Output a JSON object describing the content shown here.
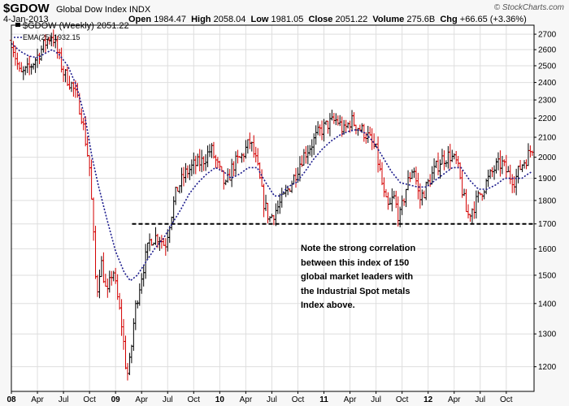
{
  "header": {
    "symbol": "$GDOW",
    "name": "Global Dow Index",
    "exchange": "INDX",
    "date": "4-Jan-2013",
    "open_label": "Open",
    "open": "1984.47",
    "high_label": "High",
    "high": "2058.04",
    "low_label": "Low",
    "low": "1981.05",
    "close_label": "Close",
    "close": "2051.22",
    "volume_label": "Volume",
    "volume": "275.6B",
    "chg_label": "Chg",
    "chg": "+66.65 (+3.36%)",
    "brand": "© StockCharts.com"
  },
  "legend": {
    "price": "$GDOW (Weekly) 2051.22",
    "ema": "EMA(25) 1932.15"
  },
  "annotation": {
    "lines": [
      "Note the strong correlation",
      "between this index of 150",
      "global market leaders with",
      "the Industrial Spot metals",
      "Index above."
    ]
  },
  "chart_data": {
    "type": "ohlc",
    "title": "$GDOW (Weekly)",
    "x_tick_labels": [
      "08",
      "Apr",
      "Jul",
      "Oct",
      "09",
      "Apr",
      "Jul",
      "Oct",
      "10",
      "Apr",
      "Jul",
      "Oct",
      "11",
      "Apr",
      "Jul",
      "Oct",
      "12",
      "Apr",
      "Jul",
      "Oct"
    ],
    "x_tick_months": [
      0,
      3,
      6,
      9,
      12,
      15,
      18,
      21,
      24,
      27,
      30,
      33,
      36,
      39,
      42,
      45,
      48,
      51,
      54,
      57
    ],
    "y_tick_labels": [
      "1200",
      "1300",
      "1400",
      "1500",
      "1600",
      "1700",
      "1800",
      "1900",
      "2000",
      "2100",
      "2200",
      "2300",
      "2400",
      "2500",
      "2600",
      "2700"
    ],
    "y_scale": "log",
    "ylim": [
      1130,
      2760
    ],
    "xlim_months": [
      0,
      60.2
    ],
    "grid": true,
    "horizontal_line": 1700,
    "price_monthly_path": [
      [
        0,
        2660
      ],
      [
        1,
        2440
      ],
      [
        2,
        2480
      ],
      [
        3,
        2560
      ],
      [
        4,
        2650
      ],
      [
        4.7,
        2700
      ],
      [
        5.2,
        2600
      ],
      [
        6,
        2460
      ],
      [
        7,
        2380
      ],
      [
        8,
        2240
      ],
      [
        9,
        1950
      ],
      [
        9.8,
        1420
      ],
      [
        10.3,
        1560
      ],
      [
        11,
        1420
      ],
      [
        11.7,
        1530
      ],
      [
        12,
        1460
      ],
      [
        12.7,
        1330
      ],
      [
        13.3,
        1170
      ],
      [
        13.7,
        1220
      ],
      [
        14.2,
        1370
      ],
      [
        15,
        1500
      ],
      [
        16,
        1640
      ],
      [
        17,
        1650
      ],
      [
        17.7,
        1610
      ],
      [
        18.3,
        1720
      ],
      [
        19,
        1840
      ],
      [
        20,
        1920
      ],
      [
        21,
        1960
      ],
      [
        22,
        1980
      ],
      [
        23,
        2040
      ],
      [
        24,
        1930
      ],
      [
        24.7,
        1860
      ],
      [
        25.5,
        1960
      ],
      [
        26.5,
        2000
      ],
      [
        27.5,
        2080
      ],
      [
        28.3,
        1960
      ],
      [
        29,
        1800
      ],
      [
        29.7,
        1720
      ],
      [
        30.5,
        1760
      ],
      [
        31.5,
        1820
      ],
      [
        32.5,
        1900
      ],
      [
        33.5,
        2000
      ],
      [
        34.5,
        2060
      ],
      [
        35.5,
        2130
      ],
      [
        36.5,
        2170
      ],
      [
        37.5,
        2190
      ],
      [
        38.3,
        2130
      ],
      [
        39.1,
        2190
      ],
      [
        40,
        2150
      ],
      [
        41,
        2110
      ],
      [
        42,
        2030
      ],
      [
        42.5,
        1920
      ],
      [
        43,
        1800
      ],
      [
        43.5,
        1760
      ],
      [
        44,
        1820
      ],
      [
        44.7,
        1720
      ],
      [
        45.5,
        1860
      ],
      [
        46.3,
        1960
      ],
      [
        47,
        1800
      ],
      [
        47.8,
        1860
      ],
      [
        48.5,
        1920
      ],
      [
        49.5,
        1990
      ],
      [
        50.5,
        2010
      ],
      [
        51.3,
        1970
      ],
      [
        52,
        1830
      ],
      [
        52.5,
        1730
      ],
      [
        53,
        1760
      ],
      [
        53.5,
        1790
      ],
      [
        54,
        1830
      ],
      [
        55,
        1900
      ],
      [
        55.7,
        1950
      ],
      [
        56.5,
        1970
      ],
      [
        57.2,
        1920
      ],
      [
        58,
        1890
      ],
      [
        58.7,
        1960
      ],
      [
        59.4,
        2000
      ],
      [
        60,
        2051
      ]
    ],
    "ema_monthly_path": [
      [
        0,
        2640
      ],
      [
        1,
        2590
      ],
      [
        2,
        2560
      ],
      [
        3,
        2550
      ],
      [
        4,
        2580
      ],
      [
        4.7,
        2600
      ],
      [
        5.5,
        2570
      ],
      [
        6.5,
        2500
      ],
      [
        7.5,
        2380
      ],
      [
        8.5,
        2200
      ],
      [
        9.3,
        2000
      ],
      [
        10,
        1870
      ],
      [
        11,
        1720
      ],
      [
        12,
        1590
      ],
      [
        13,
        1510
      ],
      [
        13.7,
        1480
      ],
      [
        14.5,
        1500
      ],
      [
        15.5,
        1550
      ],
      [
        16.5,
        1600
      ],
      [
        17.5,
        1640
      ],
      [
        18.5,
        1700
      ],
      [
        19.5,
        1760
      ],
      [
        20.5,
        1830
      ],
      [
        21.5,
        1880
      ],
      [
        22.5,
        1920
      ],
      [
        23.5,
        1950
      ],
      [
        24.5,
        1930
      ],
      [
        25.3,
        1900
      ],
      [
        26.3,
        1920
      ],
      [
        27.3,
        1950
      ],
      [
        28.3,
        1950
      ],
      [
        29.3,
        1880
      ],
      [
        30.3,
        1820
      ],
      [
        31,
        1820
      ],
      [
        31.8,
        1860
      ],
      [
        32.8,
        1880
      ],
      [
        33.8,
        1930
      ],
      [
        34.8,
        1990
      ],
      [
        35.8,
        2040
      ],
      [
        36.8,
        2080
      ],
      [
        37.8,
        2110
      ],
      [
        38.8,
        2130
      ],
      [
        39.8,
        2140
      ],
      [
        40.8,
        2120
      ],
      [
        41.8,
        2070
      ],
      [
        42.8,
        2000
      ],
      [
        43.8,
        1930
      ],
      [
        44.8,
        1880
      ],
      [
        45.8,
        1870
      ],
      [
        46.8,
        1860
      ],
      [
        47.8,
        1860
      ],
      [
        48.8,
        1890
      ],
      [
        49.8,
        1920
      ],
      [
        50.8,
        1950
      ],
      [
        51.8,
        1950
      ],
      [
        52.8,
        1890
      ],
      [
        53.8,
        1850
      ],
      [
        54.8,
        1850
      ],
      [
        55.8,
        1870
      ],
      [
        56.8,
        1900
      ],
      [
        57.8,
        1900
      ],
      [
        58.8,
        1900
      ],
      [
        59.5,
        1920
      ],
      [
        60,
        1932
      ]
    ],
    "series": [
      {
        "name": "$GDOW (Weekly)",
        "last": 2051.22
      },
      {
        "name": "EMA(25)",
        "last": 1932.15
      }
    ],
    "colors": {
      "up": "#000000",
      "down": "#d40000",
      "ema": "#1a1a8c",
      "grid": "#dedede",
      "border": "#000000",
      "plot_bg": "#ffffff",
      "panel_bg": "#f7f7f7"
    }
  }
}
